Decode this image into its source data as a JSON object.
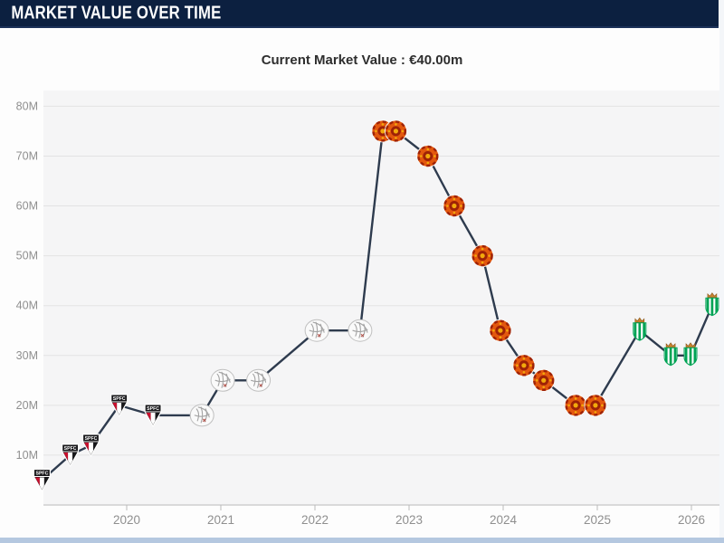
{
  "header": {
    "title": "MARKET VALUE OVER TIME"
  },
  "subtitle": {
    "text": "Current Market Value : €40.00m"
  },
  "colors": {
    "titlebar_bg": "#0c2040",
    "line": "#2e3b4e",
    "grid": "#e3e3e4",
    "axis": "#cfcfcf",
    "tick_label": "#8f8f8f",
    "plot_bg": "#f5f5f6",
    "bottom_strip": "#b5c8e0"
  },
  "chart_data": {
    "type": "line",
    "title": "Market Value Over Time",
    "subtitle": "Current Market Value : €40.00m",
    "currency": "EUR",
    "unit": "million",
    "xlabel": "",
    "ylabel": "",
    "x_ticks": [
      {
        "year": 2020,
        "label": "2020"
      },
      {
        "year": 2021,
        "label": "2021"
      },
      {
        "year": 2022,
        "label": "2022"
      },
      {
        "year": 2023,
        "label": "2023"
      },
      {
        "year": 2024,
        "label": "2024"
      },
      {
        "year": 2025,
        "label": "2025"
      },
      {
        "year": 2026,
        "label": "2026"
      }
    ],
    "y_ticks": [
      {
        "value": 10,
        "label": "10M"
      },
      {
        "value": 20,
        "label": "20M"
      },
      {
        "value": 30,
        "label": "30M"
      },
      {
        "value": 40,
        "label": "40M"
      },
      {
        "value": 50,
        "label": "50M"
      },
      {
        "value": 60,
        "label": "60M"
      },
      {
        "value": 70,
        "label": "70M"
      },
      {
        "value": 80,
        "label": "80M"
      }
    ],
    "xlim": [
      2019.0,
      2026.35
    ],
    "ylim": [
      0,
      85
    ],
    "grid": true,
    "legend": "none",
    "points": [
      {
        "year": 2019.1,
        "value_m": 5,
        "club": "sao-paulo"
      },
      {
        "year": 2019.4,
        "value_m": 10,
        "club": "sao-paulo"
      },
      {
        "year": 2019.62,
        "value_m": 12,
        "club": "sao-paulo"
      },
      {
        "year": 2019.92,
        "value_m": 20,
        "club": "sao-paulo"
      },
      {
        "year": 2020.28,
        "value_m": 18,
        "club": "sao-paulo"
      },
      {
        "year": 2020.8,
        "value_m": 18,
        "club": "ajax"
      },
      {
        "year": 2021.02,
        "value_m": 25,
        "club": "ajax"
      },
      {
        "year": 2021.4,
        "value_m": 25,
        "club": "ajax"
      },
      {
        "year": 2022.02,
        "value_m": 35,
        "club": "ajax"
      },
      {
        "year": 2022.48,
        "value_m": 35,
        "club": "ajax"
      },
      {
        "year": 2022.72,
        "value_m": 75,
        "club": "manchester-united"
      },
      {
        "year": 2022.86,
        "value_m": 75,
        "club": "manchester-united"
      },
      {
        "year": 2023.2,
        "value_m": 70,
        "club": "manchester-united"
      },
      {
        "year": 2023.48,
        "value_m": 60,
        "club": "manchester-united"
      },
      {
        "year": 2023.78,
        "value_m": 50,
        "club": "manchester-united"
      },
      {
        "year": 2023.97,
        "value_m": 35,
        "club": "manchester-united"
      },
      {
        "year": 2024.22,
        "value_m": 28,
        "club": "manchester-united"
      },
      {
        "year": 2024.43,
        "value_m": 25,
        "club": "manchester-united"
      },
      {
        "year": 2024.77,
        "value_m": 20,
        "club": "manchester-united"
      },
      {
        "year": 2024.98,
        "value_m": 20,
        "club": "manchester-united"
      },
      {
        "year": 2025.45,
        "value_m": 35,
        "club": "real-betis"
      },
      {
        "year": 2025.78,
        "value_m": 30,
        "club": "real-betis"
      },
      {
        "year": 2025.99,
        "value_m": 30,
        "club": "real-betis"
      },
      {
        "year": 2026.22,
        "value_m": 40,
        "club": "real-betis"
      }
    ],
    "marker_styles": {
      "sao-paulo": {
        "black": "#17171a",
        "red": "#c8102e",
        "white": "#ffffff",
        "band_text": "SPFC"
      },
      "ajax": {
        "bg": "#fafafa",
        "outline": "#bfbfbf",
        "detail": "#a3a3a3",
        "accent": "#b5524a"
      },
      "manchester-united": {
        "orange": "#e3580e",
        "dark_red": "#9e2206",
        "gold": "#f2a90c"
      },
      "real-betis": {
        "green": "#00a355",
        "white": "#ffffff",
        "crown": "#c9822f",
        "crown_edge": "#8a5a1e"
      }
    },
    "line_color": "#2e3b4e"
  }
}
